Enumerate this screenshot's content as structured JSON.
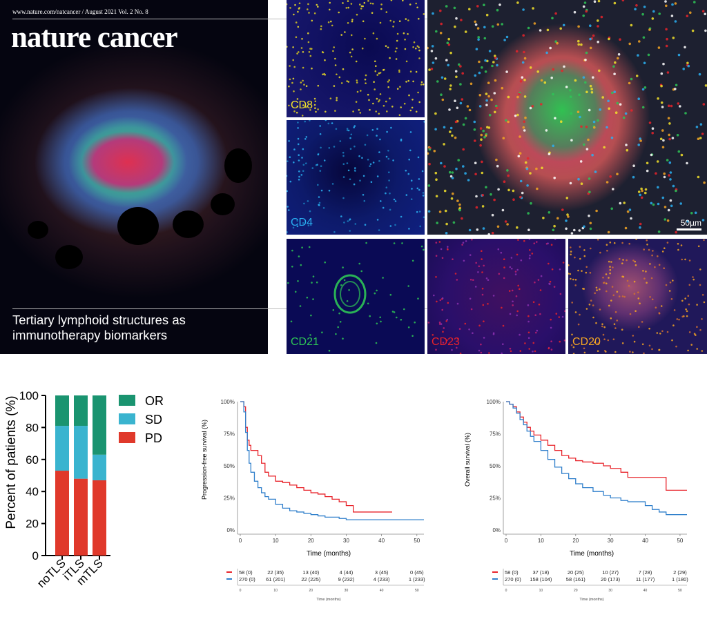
{
  "cover": {
    "url_line": "www.nature.com/natcancer / August 2021 Vol. 2 No. 8",
    "journal_title": "nature cancer",
    "headline_line1": "Tertiary lymphoid structures as",
    "headline_line2": "immunotherapy biomarkers"
  },
  "microscopy": {
    "panels": [
      {
        "label": "CD8",
        "color": "#f2e22a"
      },
      {
        "label": "CD4",
        "color": "#2ab0f2"
      },
      {
        "label": "CD21",
        "color": "#2ec456"
      },
      {
        "label": "CD23",
        "color": "#e8232a"
      },
      {
        "label": "CD20",
        "color": "#f5a623"
      }
    ],
    "scale_bar": "50µm"
  },
  "chart_data": [
    {
      "type": "bar",
      "stacked": true,
      "categories": [
        "noTLS",
        "iTLS",
        "mTLS"
      ],
      "series": [
        {
          "name": "PD",
          "color": "#e0392b",
          "values": [
            53,
            48,
            47
          ]
        },
        {
          "name": "SD",
          "color": "#3ab4cf",
          "values": [
            28,
            33,
            16
          ]
        },
        {
          "name": "OR",
          "color": "#1a9470",
          "values": [
            19,
            19,
            37
          ]
        }
      ],
      "ylabel": "Percent of patients (%)",
      "ylim": [
        0,
        100
      ],
      "yticks": [
        "0",
        "20",
        "40",
        "60",
        "80",
        "100"
      ],
      "legend": [
        "OR",
        "SD",
        "PD"
      ]
    },
    {
      "type": "line",
      "subtype": "kaplan-meier",
      "ylabel": "Progression-free survival (%)",
      "xlabel": "Time (months)",
      "xlim": [
        0,
        52
      ],
      "ylim": [
        0,
        100
      ],
      "xticks": [
        "0",
        "10",
        "20",
        "30",
        "40",
        "50"
      ],
      "yticks": [
        "0%",
        "25%",
        "50%",
        "75%",
        "100%"
      ],
      "series": [
        {
          "color": "#e8232a",
          "x": [
            0,
            1,
            1.5,
            2,
            2.5,
            3,
            4,
            5,
            6,
            7,
            8,
            10,
            12,
            14,
            16,
            18,
            20,
            22,
            24,
            26,
            28,
            30,
            32,
            36,
            40,
            43
          ],
          "y": [
            100,
            96,
            80,
            70,
            66,
            62,
            62,
            58,
            52,
            45,
            42,
            38,
            37,
            35,
            33,
            31,
            29,
            28,
            26,
            24,
            22,
            19,
            14,
            14,
            14,
            14
          ]
        },
        {
          "color": "#2f7fcb",
          "x": [
            0,
            1,
            1.5,
            2,
            2.5,
            3,
            4,
            5,
            6,
            7,
            8,
            10,
            12,
            14,
            16,
            18,
            20,
            22,
            24,
            26,
            28,
            30,
            35,
            40,
            45,
            52
          ],
          "y": [
            100,
            92,
            76,
            62,
            52,
            45,
            38,
            33,
            29,
            26,
            24,
            20,
            17,
            15,
            14,
            13,
            12,
            11,
            10,
            10,
            9,
            8,
            8,
            8,
            8,
            8
          ]
        }
      ],
      "risk_table": {
        "rows": [
          {
            "color": "#e8232a",
            "values": [
              "58 (0)",
              "22 (35)",
              "13 (40)",
              "4 (44)",
              "3 (45)",
              "0 (45)"
            ]
          },
          {
            "color": "#2f7fcb",
            "values": [
              "270 (0)",
              "61 (201)",
              "22 (225)",
              "9 (232)",
              "4 (233)",
              "1 (233)"
            ]
          }
        ],
        "xticks": [
          "0",
          "10",
          "20",
          "30",
          "40",
          "50"
        ],
        "xlabel": "Time (months)"
      }
    },
    {
      "type": "line",
      "subtype": "kaplan-meier",
      "ylabel": "Overall survival (%)",
      "xlabel": "Time (months)",
      "xlim": [
        0,
        52
      ],
      "ylim": [
        0,
        100
      ],
      "xticks": [
        "0",
        "10",
        "20",
        "30",
        "40",
        "50"
      ],
      "yticks": [
        "0%",
        "25%",
        "50%",
        "75%",
        "100%"
      ],
      "series": [
        {
          "color": "#e8232a",
          "x": [
            0,
            1,
            2,
            3,
            4,
            5,
            6,
            7,
            8,
            10,
            12,
            14,
            16,
            18,
            20,
            22,
            25,
            28,
            30,
            33,
            35,
            40,
            44,
            46,
            52
          ],
          "y": [
            100,
            98,
            96,
            92,
            88,
            84,
            80,
            77,
            74,
            70,
            66,
            62,
            58,
            56,
            54,
            53,
            52,
            50,
            48,
            45,
            41,
            41,
            41,
            31,
            31
          ]
        },
        {
          "color": "#2f7fcb",
          "x": [
            0,
            1,
            2,
            3,
            4,
            5,
            6,
            7,
            8,
            10,
            12,
            14,
            16,
            18,
            20,
            22,
            25,
            28,
            30,
            33,
            35,
            40,
            42,
            44,
            46,
            52
          ],
          "y": [
            100,
            98,
            95,
            91,
            86,
            82,
            77,
            73,
            69,
            62,
            55,
            49,
            44,
            40,
            36,
            33,
            30,
            27,
            25,
            23,
            22,
            19,
            16,
            14,
            12,
            12
          ]
        }
      ],
      "risk_table": {
        "rows": [
          {
            "color": "#e8232a",
            "values": [
              "58 (0)",
              "37 (18)",
              "20 (25)",
              "10 (27)",
              "7 (28)",
              "2 (29)"
            ]
          },
          {
            "color": "#2f7fcb",
            "values": [
              "270 (0)",
              "158 (104)",
              "58 (161)",
              "20 (173)",
              "11 (177)",
              "1 (180)"
            ]
          }
        ],
        "xticks": [
          "0",
          "10",
          "20",
          "30",
          "40",
          "50"
        ],
        "xlabel": "Time (months)"
      }
    }
  ]
}
